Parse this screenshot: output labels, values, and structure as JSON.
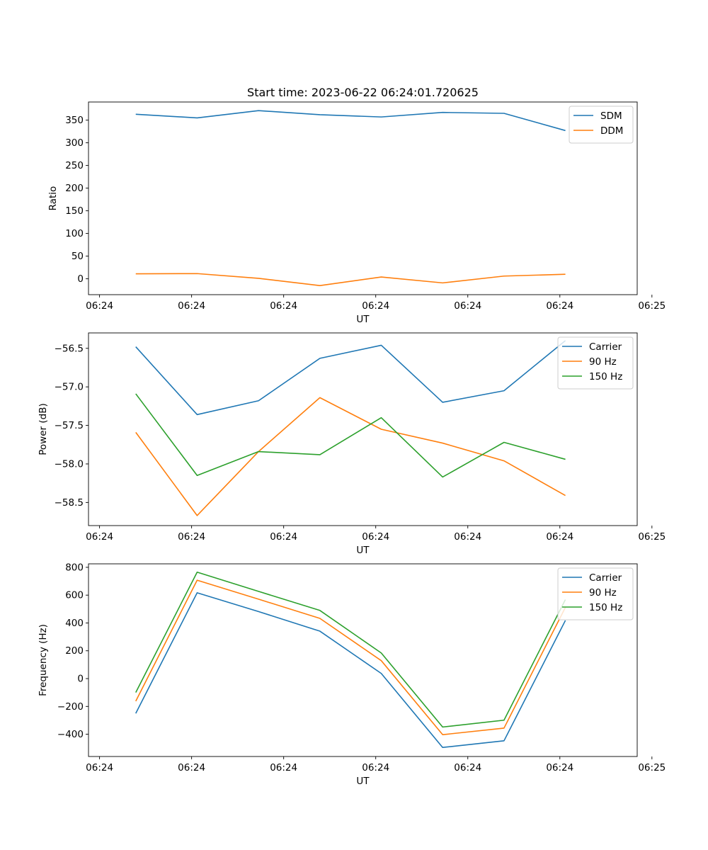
{
  "figure": {
    "title": "Start time: 2023-06-22 06:24:01.720625"
  },
  "chart_data": [
    {
      "type": "line",
      "ylabel": "Ratio",
      "xlabel": "UT",
      "ylim": [
        -35,
        390
      ],
      "yticks": [
        0,
        50,
        100,
        150,
        200,
        250,
        300,
        350
      ],
      "x_seconds": [
        1,
        2,
        3,
        4,
        5,
        6,
        7,
        8
      ],
      "xlim": [
        0.23,
        9.17
      ],
      "xticks": [
        0.41,
        1.91,
        3.41,
        4.91,
        6.41,
        7.91,
        9.41
      ],
      "xtick_labels": [
        "06:24",
        "06:24",
        "06:24",
        "06:24",
        "06:24",
        "06:24",
        "06:25"
      ],
      "legend_position": "upper right",
      "series": [
        {
          "name": "SDM",
          "color": "#1f77b4",
          "values": [
            363,
            355,
            371,
            362,
            357,
            367,
            365,
            327
          ]
        },
        {
          "name": "DDM",
          "color": "#ff7f0e",
          "values": [
            11,
            11.5,
            1,
            -15,
            4,
            -9,
            6,
            10
          ]
        }
      ]
    },
    {
      "type": "line",
      "ylabel": "Power (dB)",
      "xlabel": "UT",
      "ylim": [
        -58.8,
        -56.3
      ],
      "yticks": [
        -58.5,
        -58.0,
        -57.5,
        -57.0,
        -56.5
      ],
      "ytick_labels": [
        "−58.5",
        "−58.0",
        "−57.5",
        "−57.0",
        "−56.5"
      ],
      "x_seconds": [
        1,
        2,
        3,
        4,
        5,
        6,
        7,
        8
      ],
      "xlim": [
        0.23,
        9.17
      ],
      "xticks": [
        0.41,
        1.91,
        3.41,
        4.91,
        6.41,
        7.91,
        9.41
      ],
      "xtick_labels": [
        "06:24",
        "06:24",
        "06:24",
        "06:24",
        "06:24",
        "06:24",
        "06:25"
      ],
      "legend_position": "upper right",
      "series": [
        {
          "name": "Carrier",
          "color": "#1f77b4",
          "values": [
            -56.48,
            -57.36,
            -57.18,
            -56.63,
            -56.46,
            -57.2,
            -57.05,
            -56.4
          ]
        },
        {
          "name": "90 Hz",
          "color": "#ff7f0e",
          "values": [
            -57.59,
            -58.67,
            -57.84,
            -57.14,
            -57.55,
            -57.73,
            -57.96,
            -58.41
          ]
        },
        {
          "name": "150 Hz",
          "color": "#2ca02c",
          "values": [
            -57.09,
            -58.15,
            -57.84,
            -57.88,
            -57.4,
            -58.17,
            -57.72,
            -57.94
          ]
        }
      ]
    },
    {
      "type": "line",
      "ylabel": "Frequency (Hz)",
      "xlabel": "UT",
      "ylim": [
        -560,
        825
      ],
      "yticks": [
        -400,
        -200,
        0,
        200,
        400,
        600,
        800
      ],
      "ytick_labels": [
        "−400",
        "−200",
        "0",
        "200",
        "400",
        "600",
        "800"
      ],
      "x_seconds": [
        1,
        2,
        3,
        4,
        5,
        6,
        7,
        8
      ],
      "xlim": [
        0.23,
        9.17
      ],
      "xticks": [
        0.41,
        1.91,
        3.41,
        4.91,
        6.41,
        7.91,
        9.41
      ],
      "xtick_labels": [
        "06:24",
        "06:24",
        "06:24",
        "06:24",
        "06:24",
        "06:24",
        "06:25"
      ],
      "legend_position": "upper right",
      "series": [
        {
          "name": "Carrier",
          "color": "#1f77b4",
          "values": [
            -250,
            617,
            482,
            341,
            37,
            -495,
            -447,
            418
          ]
        },
        {
          "name": "90 Hz",
          "color": "#ff7f0e",
          "values": [
            -162,
            707,
            571,
            433,
            129,
            -403,
            -356,
            512
          ]
        },
        {
          "name": "150 Hz",
          "color": "#2ca02c",
          "values": [
            -100,
            765,
            627,
            490,
            184,
            -348,
            -299,
            568
          ]
        }
      ]
    }
  ]
}
